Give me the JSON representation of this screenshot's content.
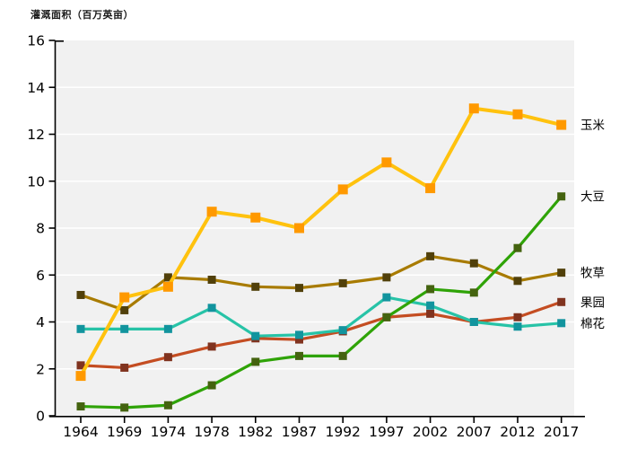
{
  "chart_data": {
    "type": "line",
    "title": "灌溉面积（百万英亩）",
    "x_categories": [
      "1964",
      "1969",
      "1974",
      "1978",
      "1982",
      "1987",
      "1992",
      "1997",
      "2002",
      "2007",
      "2012",
      "2017"
    ],
    "yticks": [
      0,
      2,
      4,
      6,
      8,
      10,
      12,
      14,
      16
    ],
    "ylim": [
      0,
      16
    ],
    "grid": "horizontal",
    "plot_bg_color": "#f1f1f1",
    "grid_color": "#ffffff",
    "axis_color": "#000000",
    "legend_position": "right-of-line-end",
    "series": [
      {
        "name": "玉米",
        "line_color": "#FFC20E",
        "marker_color": "#FF9900",
        "values": [
          1.7,
          5.05,
          5.5,
          8.7,
          8.45,
          8.0,
          9.65,
          10.8,
          9.7,
          13.1,
          12.85,
          12.4
        ]
      },
      {
        "name": "大豆",
        "line_color": "#2FA307",
        "marker_color": "#44630F",
        "values": [
          0.4,
          0.35,
          0.45,
          1.3,
          2.3,
          2.55,
          2.55,
          4.2,
          5.4,
          5.25,
          7.15,
          9.35
        ]
      },
      {
        "name": "牧草",
        "line_color": "#A87B00",
        "marker_color": "#51400A",
        "values": [
          5.15,
          4.5,
          5.9,
          5.8,
          5.5,
          5.45,
          5.65,
          5.9,
          6.8,
          6.5,
          5.75,
          6.1
        ]
      },
      {
        "name": "果园",
        "line_color": "#C44D22",
        "marker_color": "#80331F",
        "values": [
          2.15,
          2.05,
          2.5,
          2.95,
          3.3,
          3.25,
          3.6,
          4.2,
          4.35,
          4.0,
          4.2,
          4.85
        ]
      },
      {
        "name": "棉花",
        "line_color": "#27C3A7",
        "marker_color": "#12949E",
        "values": [
          3.7,
          3.7,
          3.7,
          4.6,
          3.4,
          3.45,
          3.65,
          5.05,
          4.7,
          4.0,
          3.8,
          3.95
        ]
      }
    ]
  }
}
